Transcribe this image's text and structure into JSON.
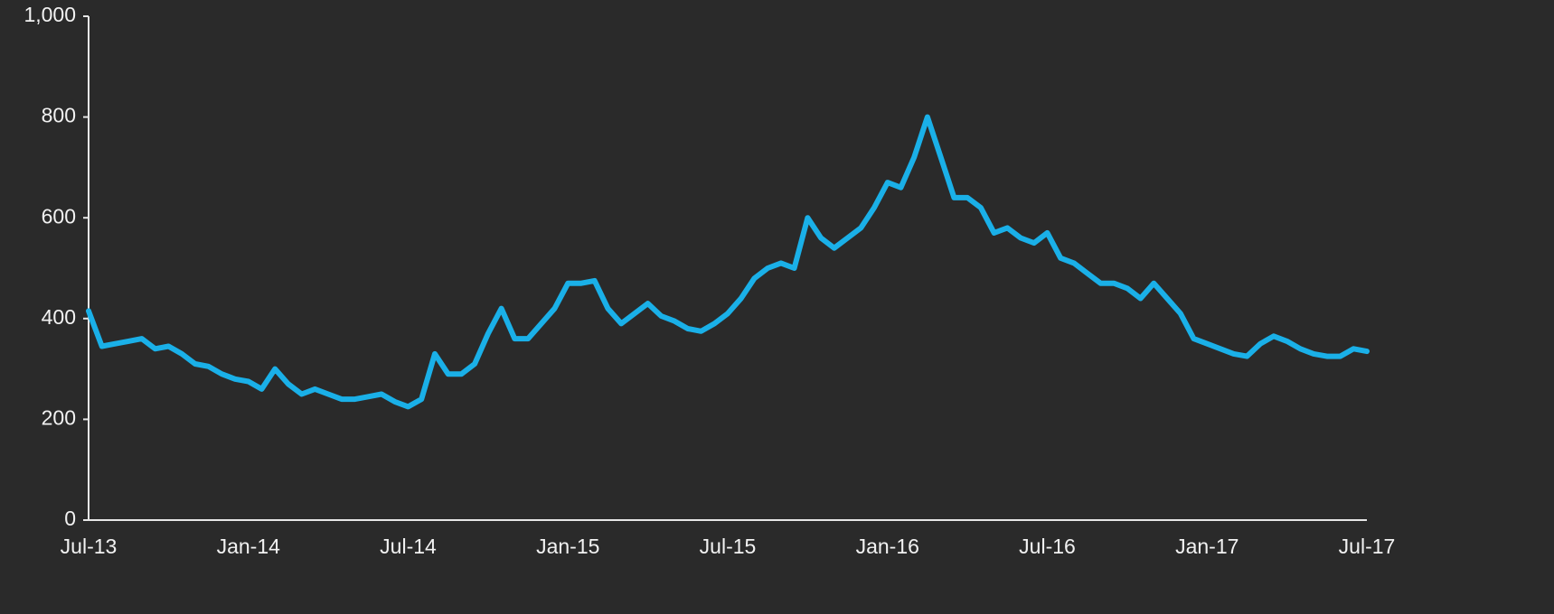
{
  "chart_data": {
    "type": "line",
    "categories": [
      "Jul-13",
      null,
      null,
      null,
      null,
      null,
      null,
      null,
      null,
      null,
      null,
      null,
      "Jan-14",
      null,
      null,
      null,
      null,
      null,
      null,
      null,
      null,
      null,
      null,
      null,
      "Jul-14",
      null,
      null,
      null,
      null,
      null,
      null,
      null,
      null,
      null,
      null,
      null,
      "Jan-15",
      null,
      null,
      null,
      null,
      null,
      null,
      null,
      null,
      null,
      null,
      null,
      "Jul-15",
      null,
      null,
      null,
      null,
      null,
      null,
      null,
      null,
      null,
      null,
      null,
      "Jan-16",
      null,
      null,
      null,
      null,
      null,
      null,
      null,
      null,
      null,
      null,
      null,
      "Jul-16",
      null,
      null,
      null,
      null,
      null,
      null,
      null,
      null,
      null,
      null,
      null,
      "Jan-17",
      null,
      null,
      null,
      null,
      null,
      null,
      null,
      null,
      null,
      null,
      null,
      "Jul-17"
    ],
    "series": [
      {
        "color": "#1ab0e8",
        "values": [
          415,
          345,
          350,
          355,
          360,
          340,
          345,
          330,
          310,
          305,
          290,
          280,
          275,
          260,
          300,
          270,
          250,
          260,
          250,
          240,
          240,
          245,
          250,
          235,
          225,
          240,
          330,
          290,
          290,
          310,
          370,
          420,
          360,
          360,
          390,
          420,
          470,
          470,
          475,
          420,
          390,
          410,
          430,
          405,
          395,
          380,
          375,
          390,
          410,
          440,
          480,
          500,
          510,
          500,
          600,
          560,
          540,
          560,
          580,
          620,
          670,
          660,
          720,
          800,
          720,
          640,
          640,
          620,
          570,
          580,
          560,
          550,
          570,
          520,
          510,
          490,
          470,
          470,
          460,
          440,
          470,
          440,
          410,
          360,
          350,
          340,
          330,
          325,
          350,
          365,
          355,
          340,
          330,
          325,
          325,
          340,
          335
        ]
      }
    ],
    "ylim": [
      0,
      1000
    ],
    "yticks": [
      0,
      200,
      400,
      600,
      800,
      {
        "value": 1000,
        "label": "1,000"
      }
    ],
    "grid": false
  }
}
